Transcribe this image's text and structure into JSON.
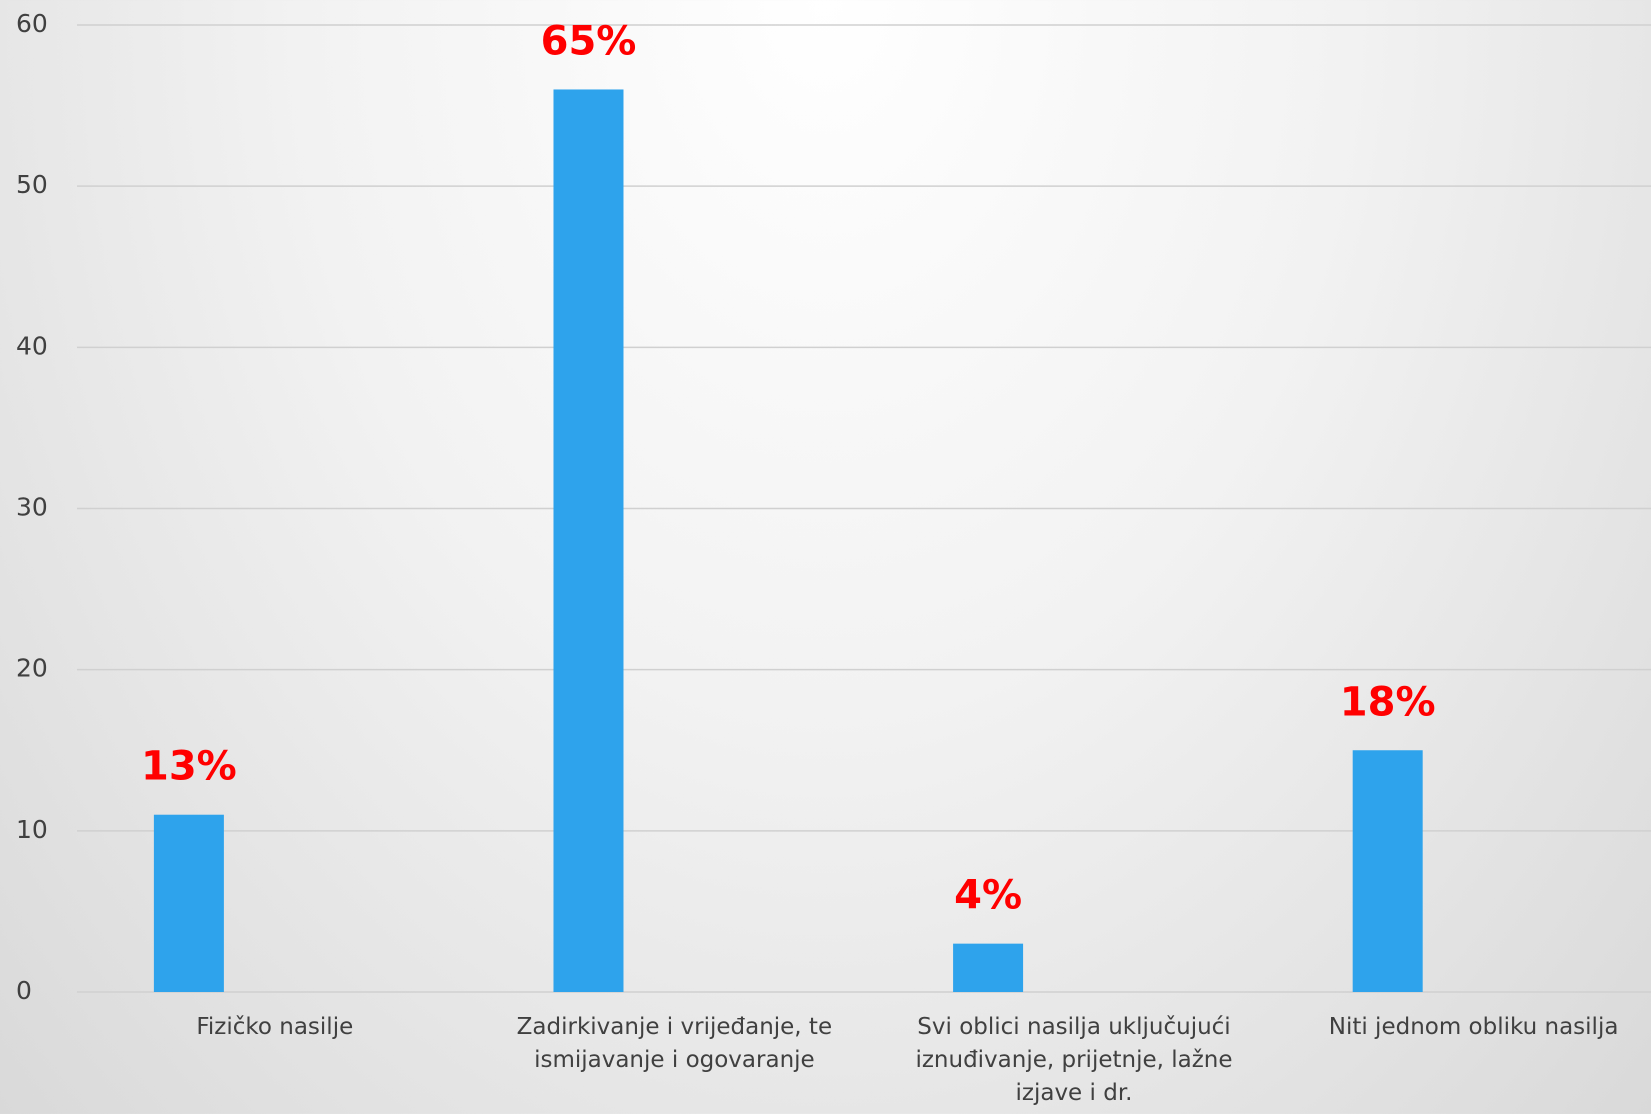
{
  "chart_data": {
    "type": "bar",
    "categories": [
      "Fizičko nasilje",
      "Zadirkivanje i vrijeđanje, te ismijavanje i ogovaranje",
      "Svi oblici nasilja uključujući iznuđivanje, prijetnje, lažne izjave i dr.",
      "Niti jednom obliku nasilja"
    ],
    "values": [
      11,
      56,
      3,
      15
    ],
    "annotations": [
      "13%",
      "65%",
      "4%",
      "18%"
    ],
    "color": "#2ea3ec",
    "ylim": [
      0,
      60
    ],
    "yticks": [
      0,
      10,
      20,
      30,
      40,
      50,
      60
    ],
    "grid": true
  }
}
